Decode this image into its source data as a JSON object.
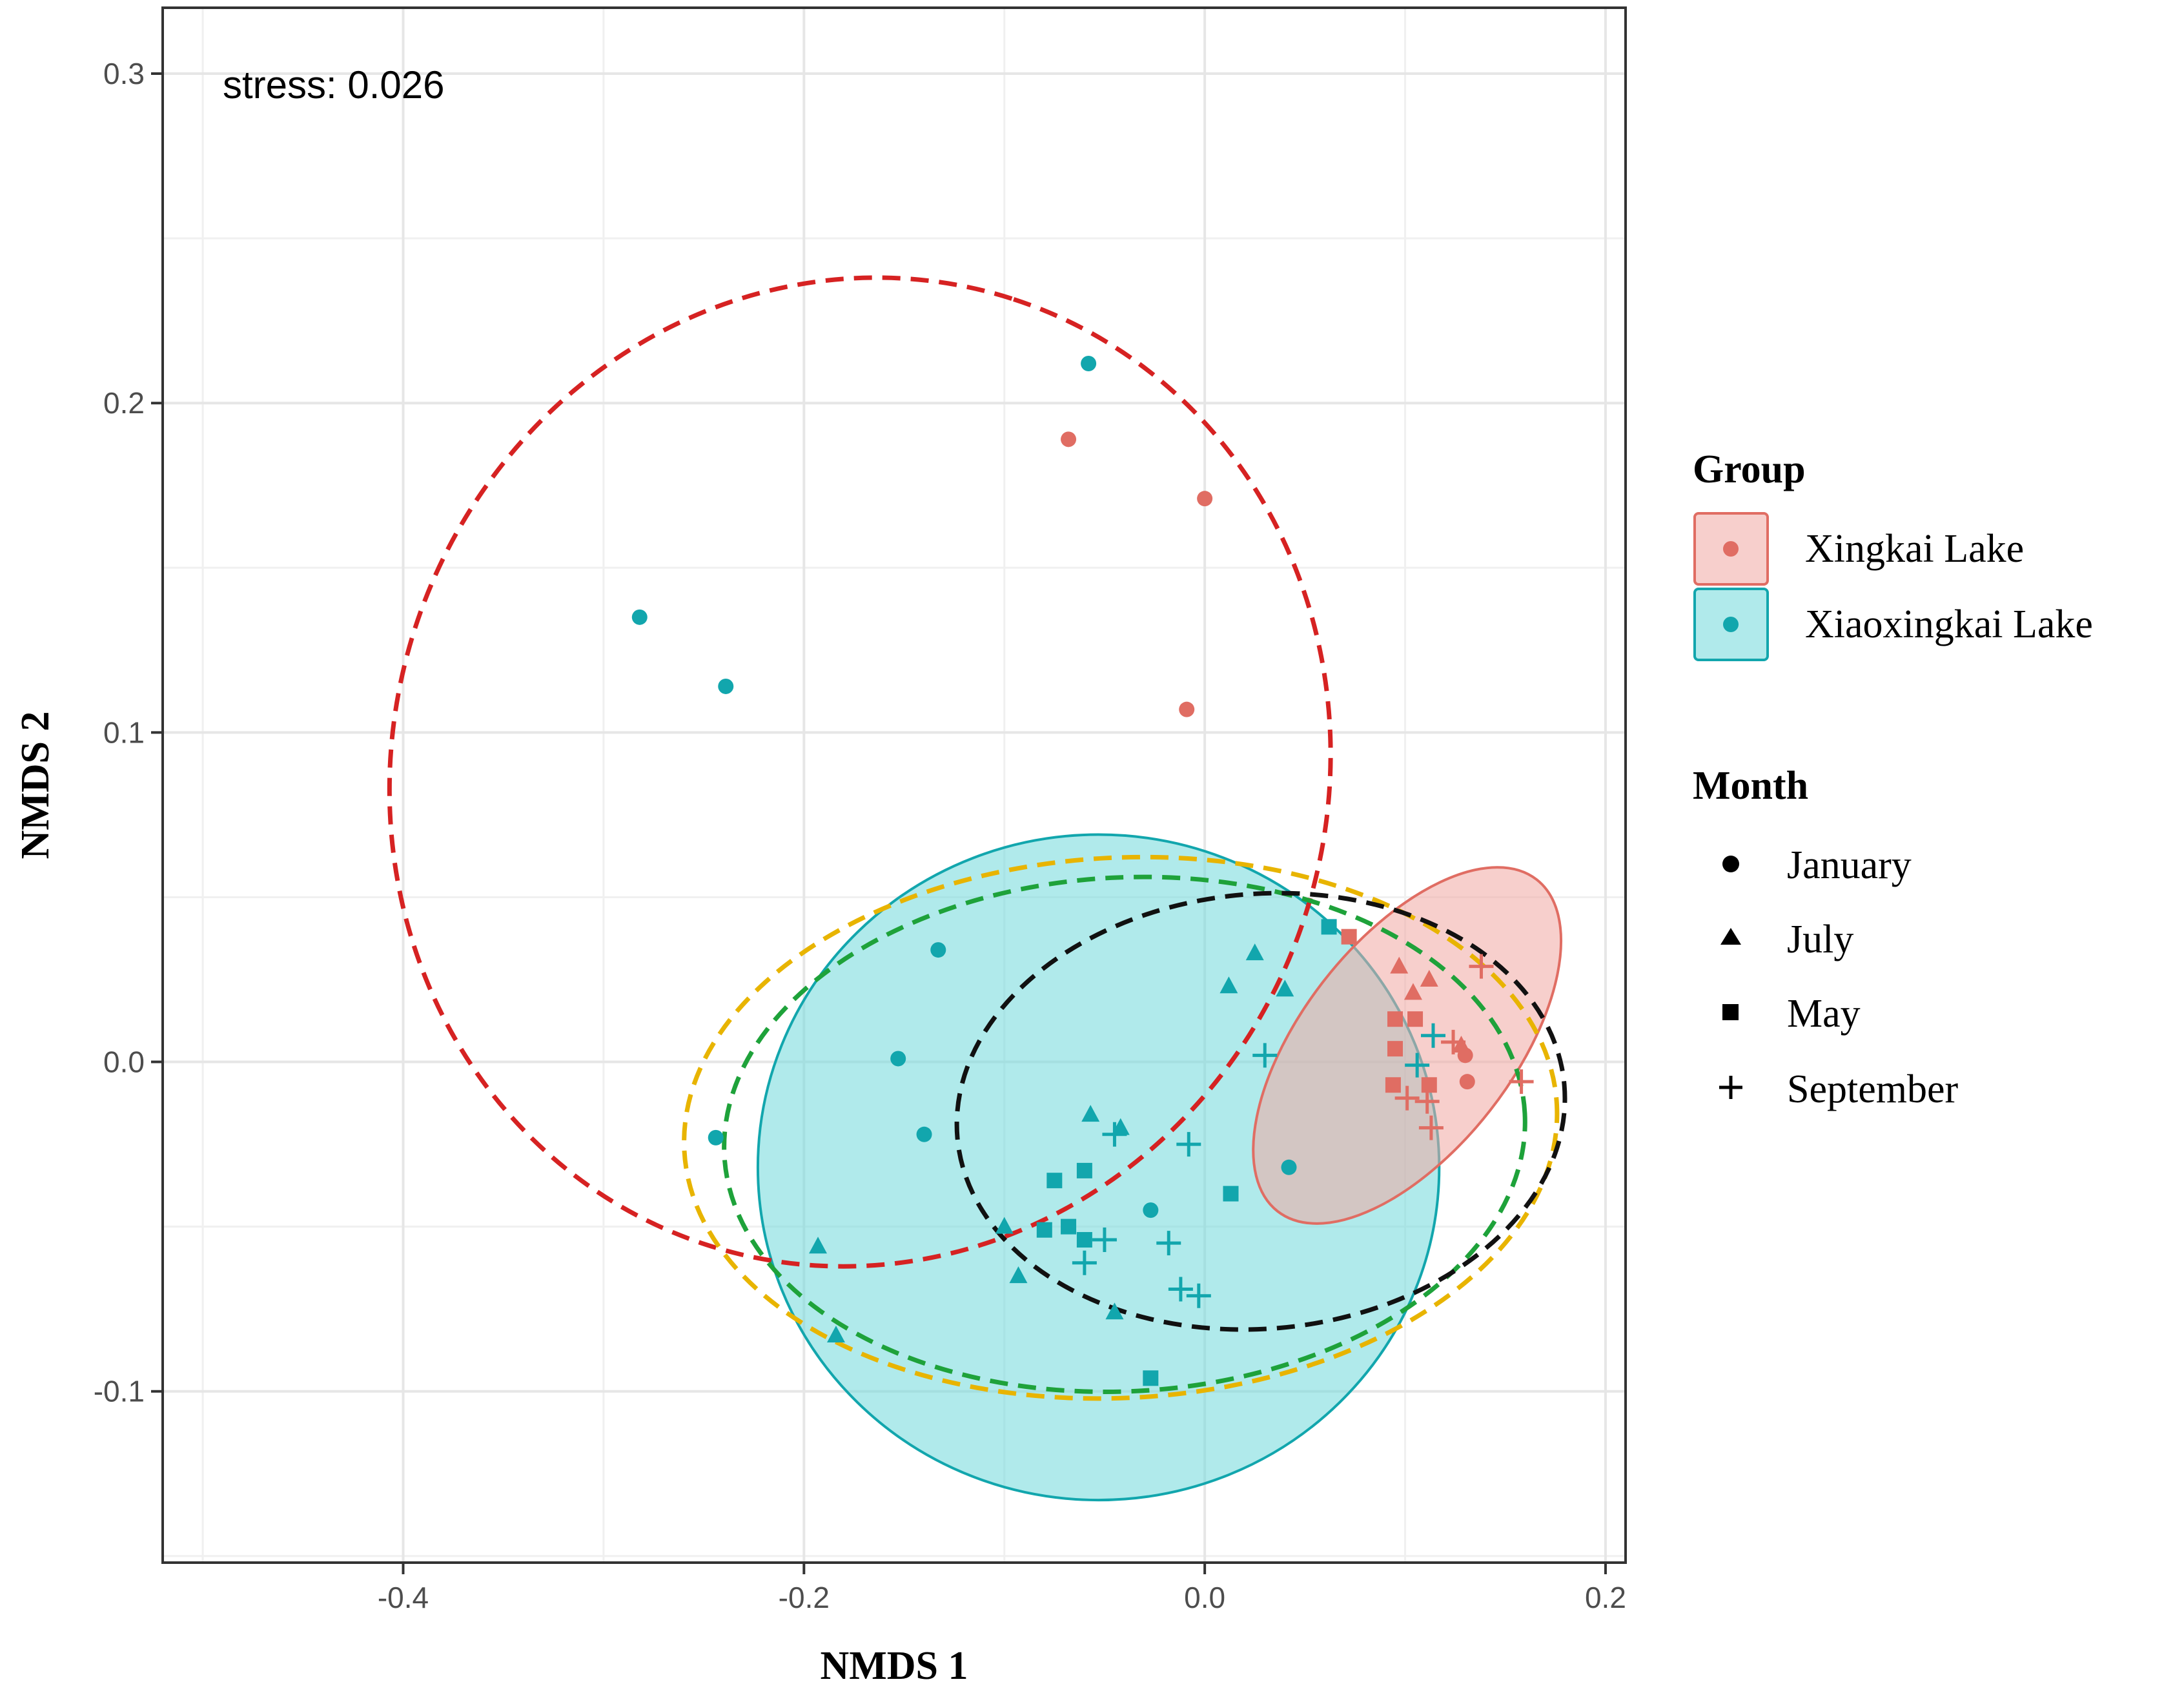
{
  "chart_data": {
    "type": "scatter",
    "title": "",
    "annotation": "stress: 0.026",
    "xlabel": "NMDS 1",
    "ylabel": "NMDS 2",
    "xlim": [
      -0.52,
      0.21
    ],
    "ylim": [
      -0.152,
      0.32
    ],
    "xticks": [
      -0.4,
      -0.2,
      0.0,
      0.2
    ],
    "xtick_labels": [
      "-0.4",
      "-0.2",
      "0.0",
      "0.2"
    ],
    "yticks": [
      -0.1,
      0.0,
      0.1,
      0.2,
      0.3
    ],
    "ytick_labels": [
      "-0.1",
      "0.0",
      "0.1",
      "0.2",
      "0.3"
    ],
    "grid": true,
    "colors": {
      "xingkai": "#e06d63",
      "xiaoxingkai": "#12a6ad",
      "xingkai_fill": "#f1a7a2",
      "xiaoxingkai_fill": "#6fd8da",
      "january_ellipse": "#d62222",
      "july_ellipse": "#e8b400",
      "may_ellipse": "#1ea23a",
      "september_ellipse": "#111111"
    },
    "legend": {
      "position": "right",
      "group_title": "Group",
      "groups": [
        {
          "key": "xingkai",
          "label": "Xingkai Lake"
        },
        {
          "key": "xiaoxingkai",
          "label": "Xiaoxingkai Lake"
        }
      ],
      "month_title": "Month",
      "months": [
        {
          "key": "january",
          "label": "January",
          "shape": "circle"
        },
        {
          "key": "july",
          "label": "July",
          "shape": "triangle"
        },
        {
          "key": "may",
          "label": "May",
          "shape": "square"
        },
        {
          "key": "september",
          "label": "September",
          "shape": "plus"
        }
      ]
    },
    "group_ellipses": [
      {
        "group": "xiaoxingkai",
        "cx": -0.053,
        "cy": -0.032,
        "rx": 0.17,
        "ry": 0.101,
        "angle": 0
      },
      {
        "group": "xingkai",
        "cx": 0.101,
        "cy": 0.005,
        "rx": 0.105,
        "ry": 0.032,
        "angle": -52
      }
    ],
    "month_ellipses": [
      {
        "month": "january",
        "cx": -0.172,
        "cy": 0.088,
        "rx": 0.248,
        "ry": 0.142,
        "angle": -72
      },
      {
        "month": "july",
        "cx": -0.042,
        "cy": -0.02,
        "rx": 0.218,
        "ry": 0.082,
        "angle": -3
      },
      {
        "month": "may",
        "cx": -0.04,
        "cy": -0.022,
        "rx": 0.2,
        "ry": 0.078,
        "angle": -3
      },
      {
        "month": "september",
        "cx": 0.028,
        "cy": -0.015,
        "rx": 0.152,
        "ry": 0.066,
        "angle": -5
      }
    ],
    "series": [
      {
        "group": "xingkai",
        "month": "january",
        "points": [
          [
            -0.068,
            0.189
          ],
          [
            0.0,
            0.171
          ],
          [
            -0.009,
            0.107
          ],
          [
            0.131,
            -0.006
          ],
          [
            0.13,
            0.002
          ]
        ]
      },
      {
        "group": "xingkai",
        "month": "july",
        "points": [
          [
            0.097,
            0.029
          ],
          [
            0.112,
            0.025
          ],
          [
            0.128,
            0.005
          ],
          [
            0.104,
            0.021
          ]
        ]
      },
      {
        "group": "xingkai",
        "month": "may",
        "points": [
          [
            0.072,
            0.038
          ],
          [
            0.095,
            0.013
          ],
          [
            0.095,
            0.004
          ],
          [
            0.105,
            0.013
          ],
          [
            0.094,
            -0.007
          ],
          [
            0.112,
            -0.007
          ]
        ]
      },
      {
        "group": "xingkai",
        "month": "september",
        "points": [
          [
            0.138,
            0.029
          ],
          [
            0.124,
            0.006
          ],
          [
            0.158,
            -0.006
          ],
          [
            0.101,
            -0.011
          ],
          [
            0.111,
            -0.012
          ],
          [
            0.113,
            -0.02
          ]
        ]
      },
      {
        "group": "xiaoxingkai",
        "month": "january",
        "points": [
          [
            -0.058,
            0.212
          ],
          [
            -0.282,
            0.135
          ],
          [
            -0.239,
            0.114
          ],
          [
            -0.153,
            0.001
          ],
          [
            -0.133,
            0.034
          ],
          [
            -0.244,
            -0.023
          ],
          [
            -0.14,
            -0.022
          ],
          [
            -0.027,
            -0.045
          ],
          [
            0.042,
            -0.032
          ]
        ]
      },
      {
        "group": "xiaoxingkai",
        "month": "july",
        "points": [
          [
            0.025,
            0.033
          ],
          [
            0.012,
            0.023
          ],
          [
            0.04,
            0.022
          ],
          [
            -0.057,
            -0.016
          ],
          [
            -0.042,
            -0.02
          ],
          [
            -0.193,
            -0.056
          ],
          [
            -0.1,
            -0.05
          ],
          [
            -0.093,
            -0.065
          ],
          [
            -0.045,
            -0.076
          ],
          [
            -0.184,
            -0.083
          ]
        ]
      },
      {
        "group": "xiaoxingkai",
        "month": "may",
        "points": [
          [
            0.062,
            0.041
          ],
          [
            -0.06,
            -0.033
          ],
          [
            -0.075,
            -0.036
          ],
          [
            -0.08,
            -0.051
          ],
          [
            -0.068,
            -0.05
          ],
          [
            -0.06,
            -0.054
          ],
          [
            0.013,
            -0.04
          ],
          [
            -0.027,
            -0.096
          ]
        ]
      },
      {
        "group": "xiaoxingkai",
        "month": "september",
        "points": [
          [
            0.03,
            0.002
          ],
          [
            -0.045,
            -0.022
          ],
          [
            -0.008,
            -0.025
          ],
          [
            -0.05,
            -0.054
          ],
          [
            -0.06,
            -0.061
          ],
          [
            -0.018,
            -0.055
          ],
          [
            -0.012,
            -0.069
          ],
          [
            -0.003,
            -0.071
          ],
          [
            0.114,
            0.008
          ],
          [
            0.106,
            -0.001
          ]
        ]
      }
    ]
  }
}
